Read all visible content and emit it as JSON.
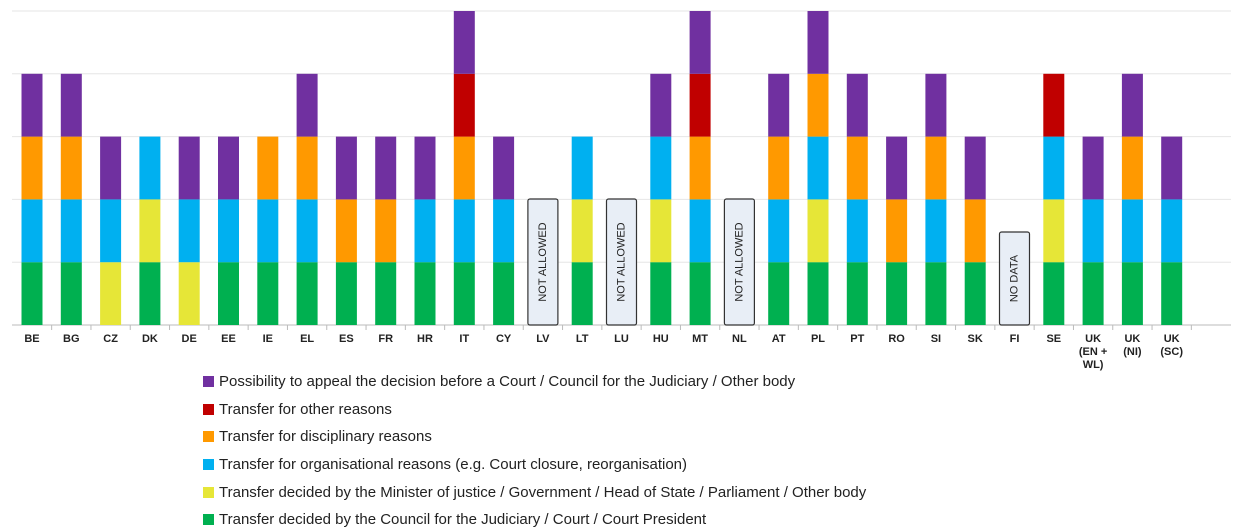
{
  "chart_data": {
    "type": "stacked_bar",
    "categories": [
      "BE",
      "BG",
      "CZ",
      "DK",
      "DE",
      "EE",
      "IE",
      "EL",
      "ES",
      "FR",
      "HR",
      "IT",
      "CY",
      "LV",
      "LT",
      "LU",
      "HU",
      "MT",
      "NL",
      "AT",
      "PL",
      "PT",
      "RO",
      "SI",
      "SK",
      "FI",
      "SE",
      "UK (EN + WL)",
      "UK (NI)",
      "UK (SC)"
    ],
    "series": [
      {
        "name": "Transfer decided by the Council for the Judiciary / Court / Court President",
        "color": "#00b050",
        "values": [
          1,
          1,
          0,
          1,
          0,
          1,
          1,
          1,
          1,
          1,
          1,
          1,
          1,
          0,
          1,
          0,
          1,
          1,
          0,
          1,
          1,
          1,
          1,
          1,
          1,
          0,
          1,
          1,
          1,
          1
        ]
      },
      {
        "name": "Transfer decided by the Minister of justice / Government / Head of State / Parliament / Other body",
        "color": "#e6e637",
        "values": [
          0,
          0,
          1,
          1,
          1,
          0,
          0,
          0,
          0,
          0,
          0,
          0,
          0,
          0,
          1,
          0,
          1,
          0,
          0,
          0,
          1,
          0,
          0,
          0,
          0,
          0,
          1,
          0,
          0,
          0
        ]
      },
      {
        "name": "Transfer for organisational reasons (e.g. Court closure, reorganisation)",
        "color": "#00b0f0",
        "values": [
          1,
          1,
          1,
          1,
          1,
          1,
          1,
          1,
          0,
          0,
          1,
          1,
          1,
          0,
          1,
          0,
          1,
          1,
          0,
          1,
          1,
          1,
          0,
          1,
          0,
          0,
          1,
          1,
          1,
          1
        ]
      },
      {
        "name": "Transfer for disciplinary reasons",
        "color": "#ff9900",
        "values": [
          1,
          1,
          0,
          0,
          0,
          0,
          1,
          1,
          1,
          1,
          0,
          1,
          0,
          0,
          0,
          0,
          0,
          1,
          0,
          1,
          1,
          1,
          1,
          1,
          1,
          0,
          0,
          0,
          1,
          0
        ]
      },
      {
        "name": "Transfer for other reasons",
        "color": "#c00000",
        "values": [
          0,
          0,
          0,
          0,
          0,
          0,
          0,
          0,
          0,
          0,
          0,
          1,
          0,
          0,
          0,
          0,
          0,
          1,
          0,
          0,
          0,
          0,
          0,
          0,
          0,
          0,
          1,
          0,
          0,
          0
        ]
      },
      {
        "name": "Possibility to appeal the decision before a Court / Council for the Judiciary / Other body",
        "color": "#7030a0",
        "values": [
          1,
          1,
          1,
          0,
          1,
          1,
          0,
          1,
          1,
          1,
          1,
          1,
          1,
          0,
          0,
          0,
          1,
          1,
          0,
          1,
          1,
          1,
          1,
          1,
          1,
          0,
          0,
          1,
          1,
          1
        ]
      }
    ],
    "annotations": [
      {
        "category": "LV",
        "text": "NOT ALLOWED"
      },
      {
        "category": "LU",
        "text": "NOT ALLOWED"
      },
      {
        "category": "NL",
        "text": "NOT ALLOWED"
      },
      {
        "category": "FI",
        "text": "NO DATA"
      }
    ],
    "ylim": [
      0,
      5
    ],
    "yticks": [
      0,
      1,
      2,
      3,
      4,
      5
    ],
    "grid": true
  }
}
